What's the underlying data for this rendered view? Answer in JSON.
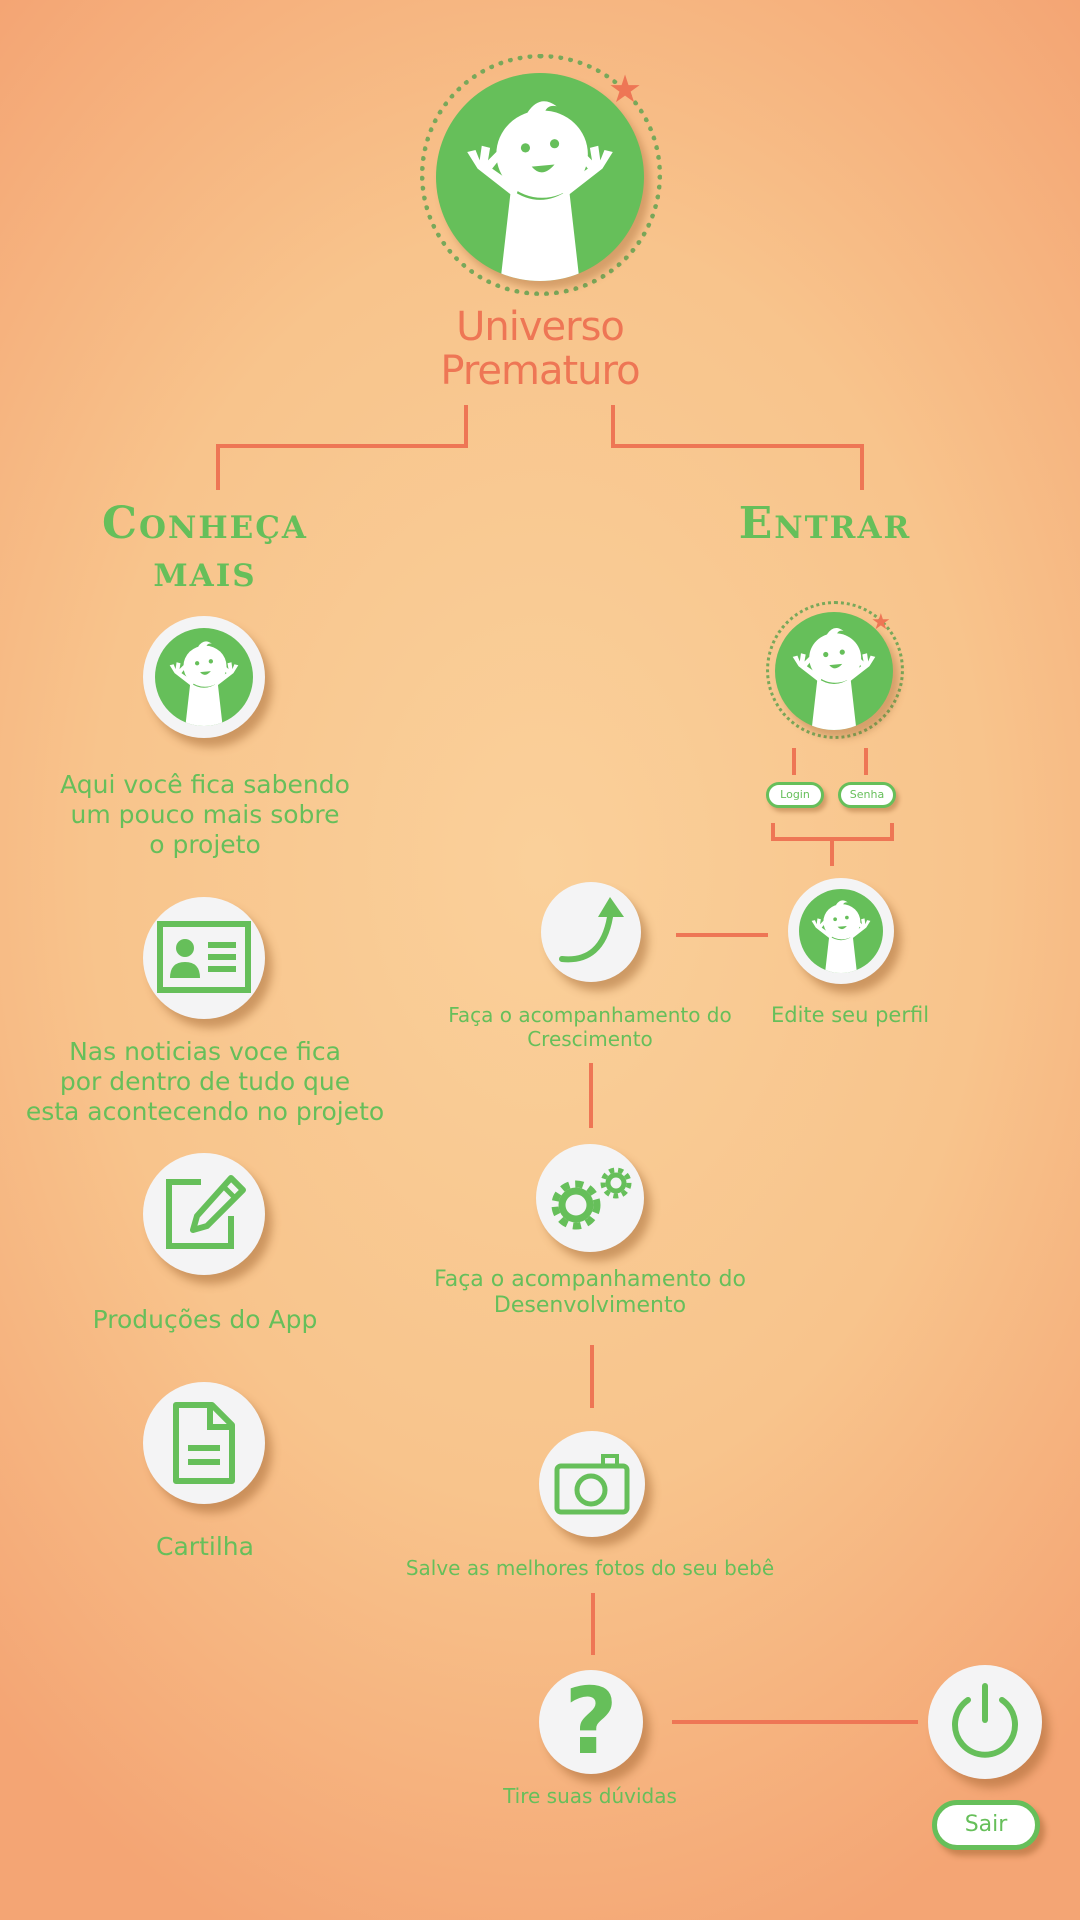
{
  "brand": {
    "line1": "Universo",
    "line2": "Prematuro"
  },
  "left_column": {
    "heading_line1": "Conheça",
    "heading_line2": "mais",
    "items": [
      {
        "icon": "baby-icon",
        "label_lines": [
          "Aqui você fica sabendo",
          "um pouco mais sobre",
          "o projeto"
        ]
      },
      {
        "icon": "news-card-icon",
        "label_lines": [
          "Nas noticias voce fica",
          "por dentro de tudo que",
          "esta acontecendo no projeto"
        ]
      },
      {
        "icon": "edit-icon",
        "label_lines": [
          "Produções do App"
        ]
      },
      {
        "icon": "document-icon",
        "label_lines": [
          "Cartilha"
        ]
      }
    ]
  },
  "right_column": {
    "heading": "Entrar",
    "login_label": "Login",
    "password_label": "Senha",
    "profile_label": "Edite seu perfil",
    "growth_label_lines": [
      "Faça o acompanhamento do",
      "Crescimento"
    ],
    "development_label_lines": [
      "Faça o acompanhamento do",
      "Desenvolvimento"
    ],
    "photos_label": "Salve as melhores fotos do seu bebê",
    "help_label": "Tire suas dúvidas",
    "logout_label": "Sair"
  },
  "colors": {
    "green": "#66bf5a",
    "connector": "#ee7655",
    "circle": "#f4f4f5",
    "background": "#f8c48c"
  }
}
